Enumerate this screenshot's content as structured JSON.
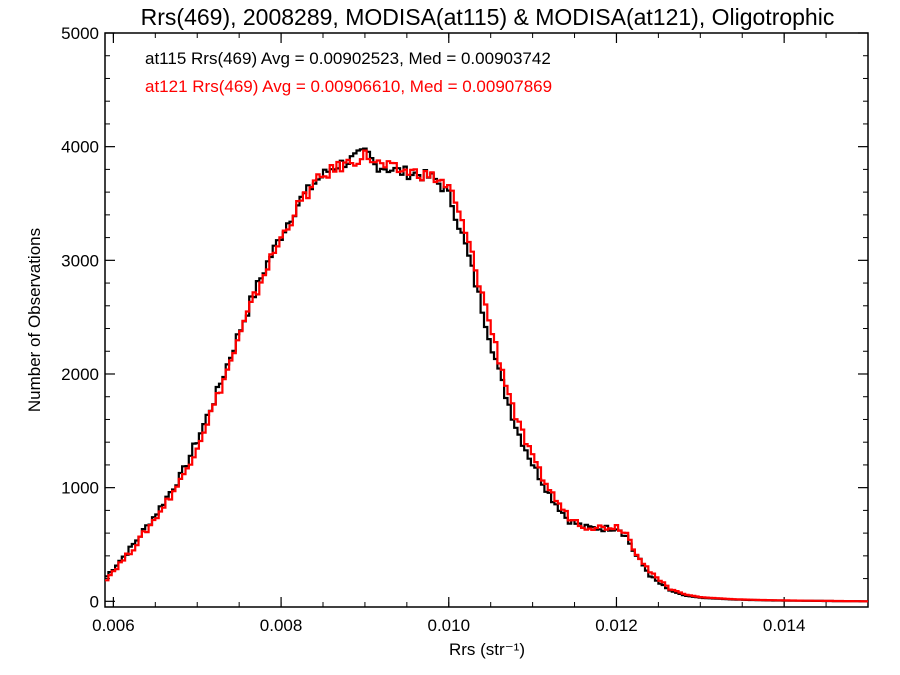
{
  "chart_data": {
    "type": "line",
    "title": "Rrs(469), 2008289, MODISA(at115) & MODISA(at121), Oligotrophic",
    "xlabel": "Rrs (str⁻¹)",
    "ylabel": "Number of Observations",
    "xlim": [
      0.0059,
      0.015
    ],
    "ylim": [
      -50,
      5000
    ],
    "x_ticks": [
      0.006,
      0.008,
      0.01,
      0.012,
      0.014
    ],
    "x_tick_labels": [
      "0.006",
      "0.008",
      "0.010",
      "0.012",
      "0.014"
    ],
    "y_ticks": [
      0,
      1000,
      2000,
      3000,
      4000,
      5000
    ],
    "y_tick_labels": [
      "0",
      "1000",
      "2000",
      "3000",
      "4000",
      "5000"
    ],
    "grid": false,
    "legend_placement": "top-left",
    "annotations": [
      {
        "text": "at115 Rrs(469) Avg = 0.00902523, Med = 0.00903742",
        "color": "#000000"
      },
      {
        "text": "at121 Rrs(469) Avg = 0.00906610, Med = 0.00907869",
        "color": "#ff0000"
      }
    ],
    "series": [
      {
        "color": "#000000",
        "x": [
          0.0059,
          0.0062,
          0.0065,
          0.0068,
          0.007,
          0.0072,
          0.0074,
          0.0076,
          0.0078,
          0.008,
          0.0082,
          0.0084,
          0.0086,
          0.0088,
          0.009,
          0.0091,
          0.0092,
          0.0094,
          0.0096,
          0.0098,
          0.0099,
          0.01,
          0.0102,
          0.0104,
          0.0106,
          0.0108,
          0.011,
          0.0112,
          0.0114,
          0.0116,
          0.0118,
          0.012,
          0.0121,
          0.0122,
          0.0124,
          0.0126,
          0.0128,
          0.013,
          0.0134,
          0.0138,
          0.0142,
          0.0146,
          0.015
        ],
        "y": [
          220,
          480,
          780,
          1120,
          1450,
          1800,
          2200,
          2600,
          2950,
          3250,
          3520,
          3700,
          3820,
          3880,
          3950,
          3840,
          3820,
          3780,
          3760,
          3720,
          3650,
          3550,
          3080,
          2520,
          1960,
          1500,
          1180,
          920,
          720,
          650,
          640,
          650,
          570,
          420,
          210,
          100,
          50,
          30,
          15,
          8,
          5,
          2,
          0
        ]
      },
      {
        "color": "#ff0000",
        "x": [
          0.0059,
          0.0062,
          0.0065,
          0.0068,
          0.007,
          0.0072,
          0.0074,
          0.0076,
          0.0078,
          0.008,
          0.0082,
          0.0084,
          0.0086,
          0.0088,
          0.009,
          0.0091,
          0.0092,
          0.0094,
          0.0096,
          0.0098,
          0.0099,
          0.01,
          0.0102,
          0.0104,
          0.0106,
          0.0108,
          0.011,
          0.0112,
          0.0114,
          0.0116,
          0.0118,
          0.012,
          0.0121,
          0.0122,
          0.0124,
          0.0126,
          0.0128,
          0.013,
          0.0134,
          0.0138,
          0.0142,
          0.0146,
          0.015
        ],
        "y": [
          200,
          450,
          750,
          1080,
          1400,
          1760,
          2150,
          2560,
          2920,
          3220,
          3500,
          3690,
          3800,
          3860,
          3930,
          3860,
          3830,
          3790,
          3770,
          3730,
          3690,
          3620,
          3200,
          2650,
          2080,
          1580,
          1220,
          960,
          750,
          660,
          650,
          660,
          600,
          450,
          240,
          120,
          60,
          35,
          18,
          10,
          6,
          3,
          0
        ]
      }
    ]
  }
}
